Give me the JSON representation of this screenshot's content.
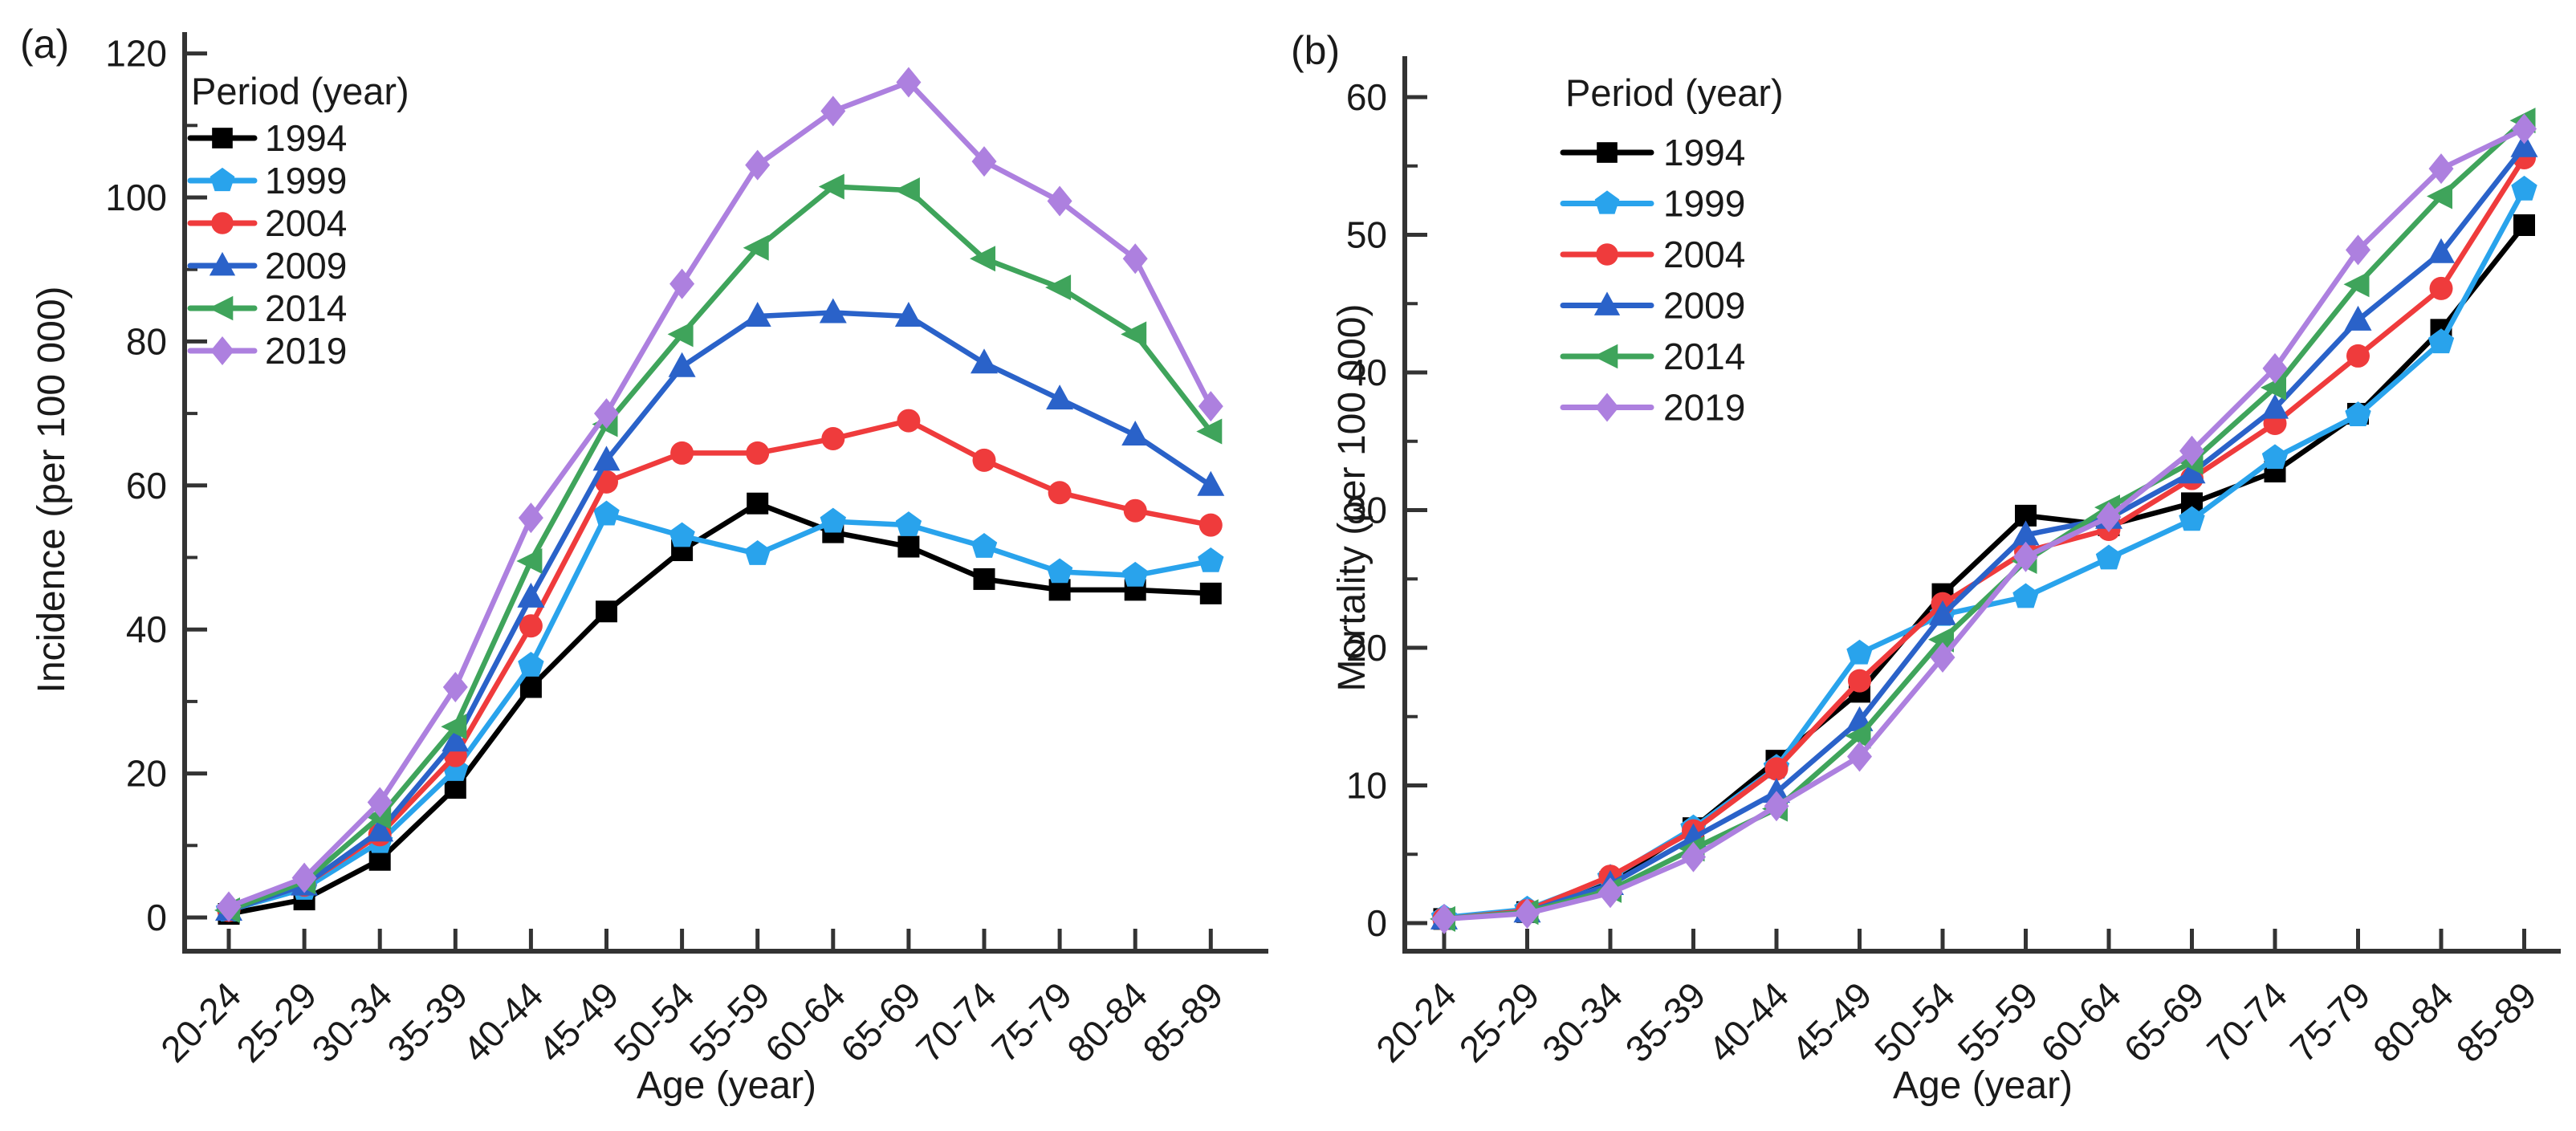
{
  "page": {
    "background": "#ffffff",
    "axis_color": "#333333",
    "text_color": "#1a1a1a"
  },
  "chart_data": [
    {
      "type": "line",
      "panel_label": "(a)",
      "title": "",
      "xlabel": "Age (year)",
      "ylabel": "Incidence (per 100 000)",
      "ylim": [
        0,
        120
      ],
      "ytick_step": 20,
      "yminor_step": 10,
      "ytick_labels": [
        "0",
        "20",
        "40",
        "60",
        "80",
        "100",
        "120"
      ],
      "grid": false,
      "legend_title": "Period (year)",
      "legend_position": "upper-left",
      "categories": [
        "20-24",
        "25-29",
        "30-34",
        "35-39",
        "40-44",
        "45-49",
        "50-54",
        "55-59",
        "60-64",
        "65-69",
        "70-74",
        "75-79",
        "80-84",
        "85-89"
      ],
      "series": [
        {
          "name": "1994",
          "color": "#000000",
          "marker": "square",
          "values": [
            0.5,
            2.5,
            8,
            18,
            32,
            42.5,
            51,
            57.5,
            53.5,
            51.5,
            47,
            45.5,
            45.5,
            45
          ]
        },
        {
          "name": "1999",
          "color": "#29A3EC",
          "marker": "pentagon",
          "values": [
            1,
            4,
            10.5,
            20.5,
            35,
            56,
            53,
            50.5,
            55,
            54.5,
            51.5,
            48,
            47.5,
            49.5
          ]
        },
        {
          "name": "2004",
          "color": "#EF3B3C",
          "marker": "circle",
          "values": [
            1,
            4.5,
            11.5,
            22.5,
            40.5,
            60.5,
            64.5,
            64.5,
            66.5,
            69,
            63.5,
            59,
            56.5,
            54.5
          ]
        },
        {
          "name": "2009",
          "color": "#2A62C9",
          "marker": "triangle-up",
          "values": [
            1,
            4.5,
            12,
            24.5,
            44.5,
            63.5,
            76.5,
            83.5,
            84,
            83.5,
            77,
            72,
            67,
            60
          ]
        },
        {
          "name": "2014",
          "color": "#3FA45B",
          "marker": "triangle-left",
          "values": [
            1,
            5,
            14,
            26.5,
            49.5,
            68.5,
            81,
            93,
            101.5,
            101,
            91.5,
            87.5,
            81,
            67.5
          ]
        },
        {
          "name": "2019",
          "color": "#AD80DF",
          "marker": "diamond",
          "values": [
            1.5,
            5.5,
            16,
            32,
            55.5,
            70,
            88,
            104.5,
            112,
            116,
            105,
            99.5,
            91.5,
            71
          ]
        }
      ]
    },
    {
      "type": "line",
      "panel_label": "(b)",
      "title": "",
      "xlabel": "Age (year)",
      "ylabel": "Mortality (per 100 000)",
      "ylim": [
        0,
        60
      ],
      "ytick_step": 10,
      "yminor_step": 5,
      "ytick_labels": [
        "0",
        "10",
        "20",
        "30",
        "40",
        "50",
        "60"
      ],
      "grid": false,
      "legend_title": "Period (year)",
      "legend_position": "upper-left",
      "categories": [
        "20-24",
        "25-29",
        "30-34",
        "35-39",
        "40-44",
        "45-49",
        "50-54",
        "55-59",
        "60-64",
        "65-69",
        "70-74",
        "75-79",
        "80-84",
        "85-89"
      ],
      "series": [
        {
          "name": "1994",
          "color": "#000000",
          "marker": "square",
          "values": [
            0.3,
            0.8,
            3,
            6.9,
            11.8,
            16.8,
            23.9,
            29.6,
            28.9,
            30.5,
            32.8,
            37,
            43.1,
            50.7
          ]
        },
        {
          "name": "1999",
          "color": "#29A3EC",
          "marker": "pentagon",
          "values": [
            0.4,
            1,
            3.3,
            6.9,
            11.3,
            19.6,
            22.4,
            23.7,
            26.5,
            29.3,
            33.8,
            36.9,
            42.2,
            53.3
          ]
        },
        {
          "name": "2004",
          "color": "#EF3B3C",
          "marker": "circle",
          "values": [
            0.3,
            0.9,
            3.4,
            6.7,
            11.2,
            17.6,
            23.2,
            27,
            28.6,
            32.3,
            36.3,
            41.2,
            46.1,
            55.6
          ]
        },
        {
          "name": "2009",
          "color": "#2A62C9",
          "marker": "triangle-up",
          "values": [
            0.3,
            0.8,
            2.8,
            6.2,
            9.5,
            14.7,
            22.4,
            28.2,
            29.4,
            32.7,
            37.4,
            43.8,
            48.7,
            56.4
          ]
        },
        {
          "name": "2014",
          "color": "#3FA45B",
          "marker": "triangle-left",
          "values": [
            0.3,
            0.8,
            2.4,
            5.4,
            8.3,
            13.6,
            20.6,
            26.3,
            30.2,
            33.5,
            38.9,
            46.4,
            52.8,
            58.3
          ]
        },
        {
          "name": "2019",
          "color": "#AD80DF",
          "marker": "diamond",
          "values": [
            0.3,
            0.7,
            2.2,
            4.8,
            8.5,
            12.1,
            19.3,
            26.6,
            29.5,
            34.3,
            40.3,
            48.9,
            54.8,
            57.7
          ]
        }
      ]
    }
  ]
}
